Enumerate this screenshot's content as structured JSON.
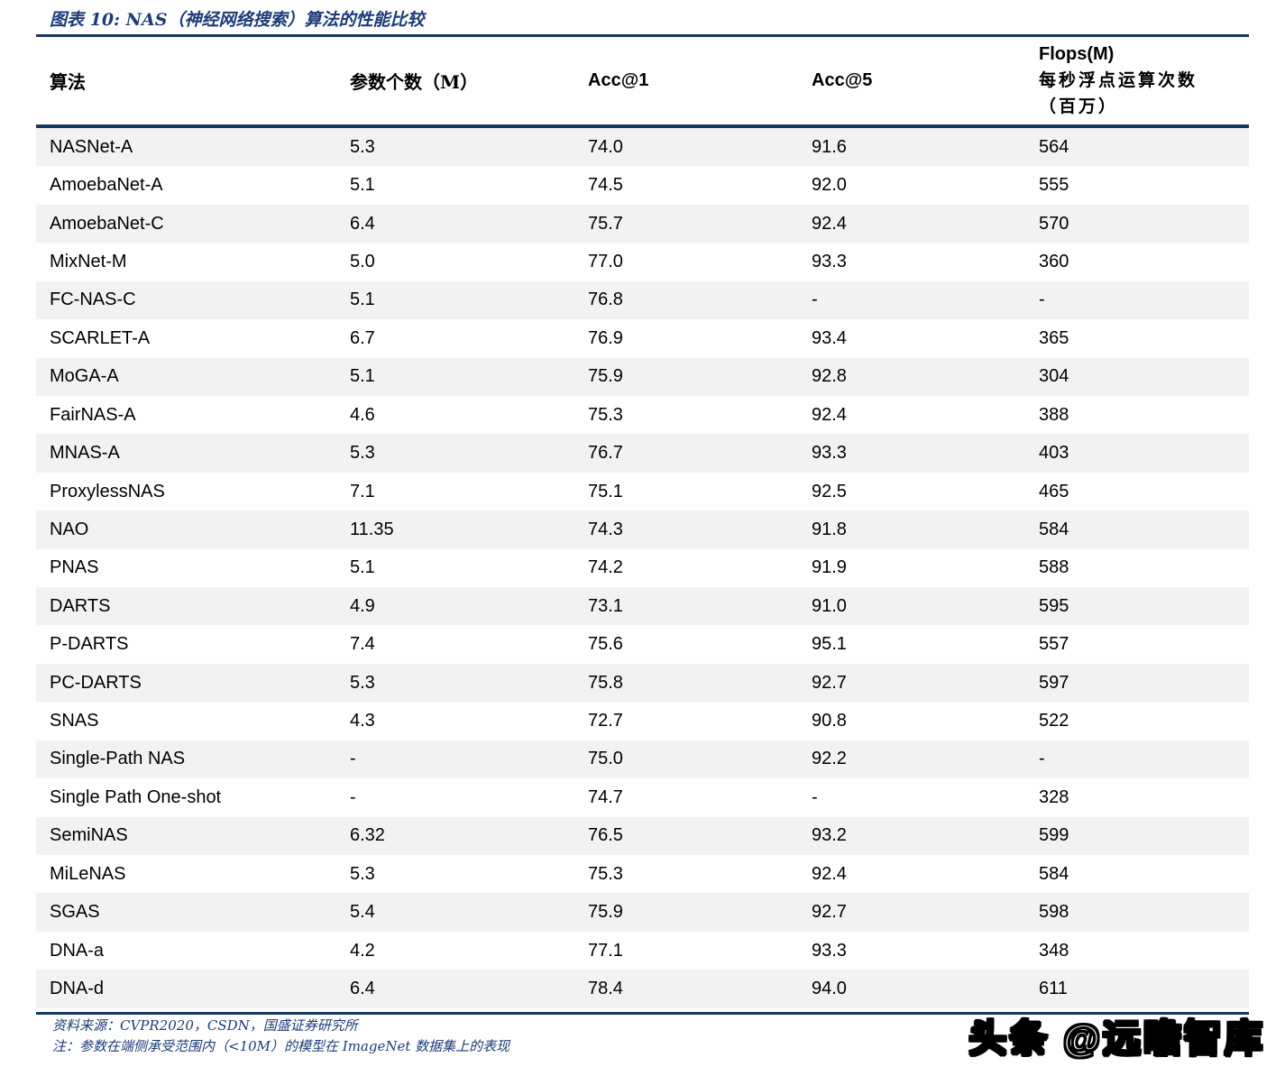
{
  "title": "图表 10:  NAS（神经网络搜索）算法的性能比较",
  "colors": {
    "rule_navy": "#17375e",
    "title_blue": "#1c3c78",
    "row_stripe": "#f2f2f2"
  },
  "table": {
    "headers": [
      "算法",
      "参数个数（M）",
      "Acc@1",
      "Acc@5"
    ],
    "flops_header": {
      "line1": "Flops(M)",
      "line2": "每秒浮点运算次数",
      "line3": "（百万）"
    },
    "rows": [
      [
        "NASNet-A",
        "5.3",
        "74.0",
        "91.6",
        "564"
      ],
      [
        "AmoebaNet-A",
        "5.1",
        "74.5",
        "92.0",
        "555"
      ],
      [
        "AmoebaNet-C",
        "6.4",
        "75.7",
        "92.4",
        "570"
      ],
      [
        "MixNet-M",
        "5.0",
        "77.0",
        "93.3",
        "360"
      ],
      [
        "FC-NAS-C",
        "5.1",
        "76.8",
        "-",
        "-"
      ],
      [
        "SCARLET-A",
        "6.7",
        "76.9",
        "93.4",
        "365"
      ],
      [
        "MoGA-A",
        "5.1",
        "75.9",
        "92.8",
        "304"
      ],
      [
        "FairNAS-A",
        "4.6",
        "75.3",
        "92.4",
        "388"
      ],
      [
        "MNAS-A",
        "5.3",
        "76.7",
        "93.3",
        "403"
      ],
      [
        "ProxylessNAS",
        "7.1",
        "75.1",
        "92.5",
        "465"
      ],
      [
        "NAO",
        "11.35",
        "74.3",
        "91.8",
        "584"
      ],
      [
        "PNAS",
        "5.1",
        "74.2",
        "91.9",
        "588"
      ],
      [
        "DARTS",
        "4.9",
        "73.1",
        "91.0",
        "595"
      ],
      [
        "P-DARTS",
        "7.4",
        "75.6",
        "95.1",
        "557"
      ],
      [
        "PC-DARTS",
        "5.3",
        "75.8",
        "92.7",
        "597"
      ],
      [
        "SNAS",
        "4.3",
        "72.7",
        "90.8",
        "522"
      ],
      [
        "Single-Path NAS",
        "-",
        "75.0",
        "92.2",
        "-"
      ],
      [
        "Single Path One-shot",
        "-",
        "74.7",
        "-",
        "328"
      ],
      [
        "SemiNAS",
        "6.32",
        "76.5",
        "93.2",
        "599"
      ],
      [
        "MiLeNAS",
        "5.3",
        "75.3",
        "92.4",
        "584"
      ],
      [
        "SGAS",
        "5.4",
        "75.9",
        "92.7",
        "598"
      ],
      [
        "DNA-a",
        "4.2",
        "77.1",
        "93.3",
        "348"
      ],
      [
        "DNA-d",
        "6.4",
        "78.4",
        "94.0",
        "611"
      ]
    ]
  },
  "footer": {
    "source": "资料来源：CVPR2020，CSDN，国盛证券研究所",
    "note": "注：参数在端侧承受范围内（<10M）的模型在 ImageNet 数据集上的表现"
  },
  "watermark": "头条 @远瞻智库"
}
